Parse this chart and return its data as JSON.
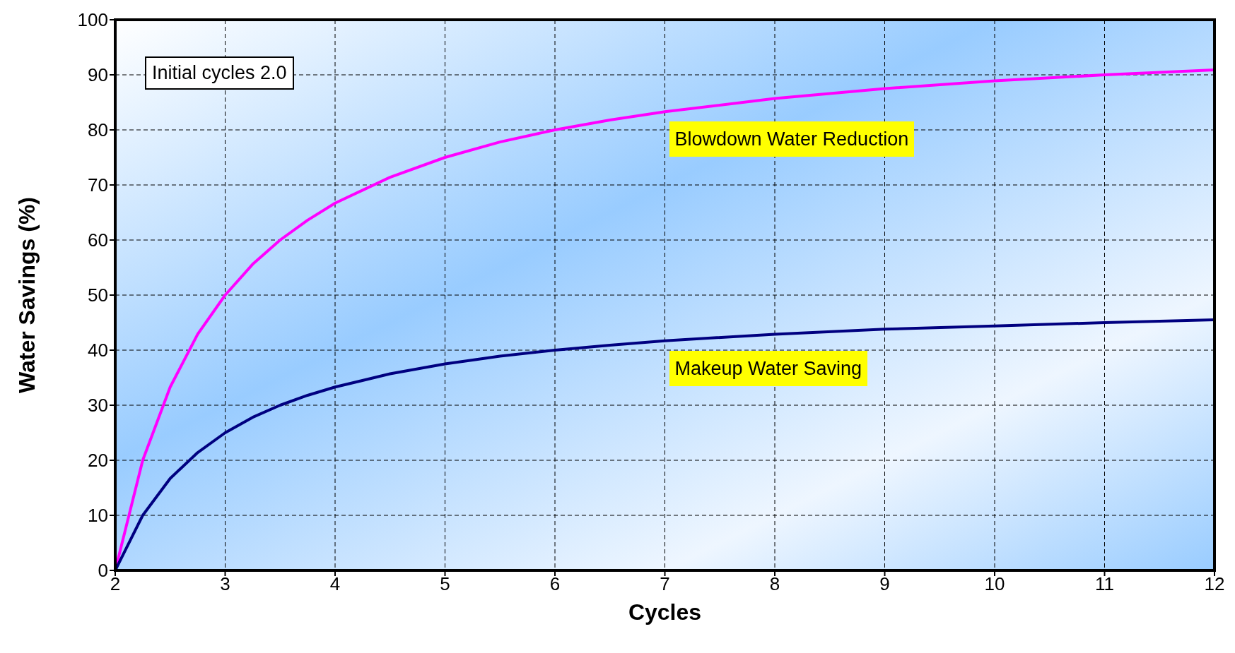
{
  "chart_data": {
    "type": "line",
    "xlabel": "Cycles",
    "ylabel": "Water Savings (%)",
    "x": [
      2,
      2.25,
      2.5,
      2.75,
      3,
      3.25,
      3.5,
      3.75,
      4,
      4.5,
      5,
      5.5,
      6,
      6.5,
      7,
      8,
      9,
      10,
      11,
      12
    ],
    "series": [
      {
        "name": "Blowdown Water Reduction",
        "color": "#ff00ff",
        "values": [
          0,
          20,
          33.3,
          42.9,
          50,
          55.6,
          60,
          63.6,
          66.7,
          71.4,
          75,
          77.8,
          80,
          81.8,
          83.3,
          85.7,
          87.5,
          88.9,
          90,
          90.9
        ]
      },
      {
        "name": "Makeup Water Saving",
        "color": "#000080",
        "values": [
          0,
          10,
          16.7,
          21.4,
          25,
          27.8,
          30,
          31.8,
          33.3,
          35.7,
          37.5,
          38.9,
          40,
          40.9,
          41.7,
          42.9,
          43.8,
          44.4,
          45,
          45.5
        ]
      }
    ],
    "xlim": [
      2,
      12
    ],
    "xticks": [
      2,
      3,
      4,
      5,
      6,
      7,
      8,
      9,
      10,
      11,
      12
    ],
    "ylim": [
      0,
      100
    ],
    "yticks": [
      0,
      10,
      20,
      30,
      40,
      50,
      60,
      70,
      80,
      90,
      100
    ],
    "grid": true,
    "marker": "none",
    "line_style": "solid",
    "annotations": [
      "Initial cycles 2.0"
    ]
  }
}
